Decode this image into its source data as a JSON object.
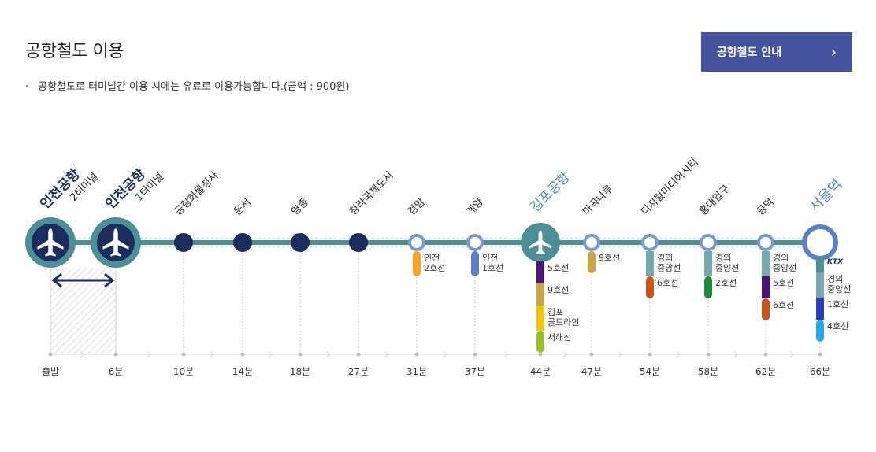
{
  "page": {
    "title": "공항철도 이용",
    "guide_button": "공항철도 안내",
    "notice": "공항철도로 터미널간 이용 시에는 유료로 이용가능합니다.(금액 : 900원)"
  },
  "colors": {
    "brand": "#44539b",
    "track": "#4d8f97",
    "airport_circle": "#4d8f97",
    "stop_dark": "#1b2d5c",
    "seoul_blue": "#5b80c5"
  },
  "stations": [
    {
      "name": "인천공항",
      "sub": "2터미널",
      "time": "출발",
      "kind": "airport"
    },
    {
      "name": "인천공항",
      "sub": "1터미널",
      "time": "6분",
      "kind": "airport"
    },
    {
      "name": "공항화물청사",
      "time": "10분",
      "kind": "stop"
    },
    {
      "name": "운서",
      "time": "14분",
      "kind": "stop"
    },
    {
      "name": "영종",
      "time": "18분",
      "kind": "stop"
    },
    {
      "name": "청라국제도시",
      "time": "27분",
      "kind": "stop"
    },
    {
      "name": "검암",
      "time": "31분",
      "kind": "transfer"
    },
    {
      "name": "계양",
      "time": "37분",
      "kind": "transfer"
    },
    {
      "name": "김포공항",
      "time": "44분",
      "kind": "airport-small"
    },
    {
      "name": "마곡나루",
      "time": "47분",
      "kind": "transfer"
    },
    {
      "name": "디지털미디어시티",
      "time": "54분",
      "kind": "transfer"
    },
    {
      "name": "홍대입구",
      "time": "58분",
      "kind": "transfer"
    },
    {
      "name": "공덕",
      "time": "62분",
      "kind": "transfer"
    },
    {
      "name": "서울역",
      "time": "66분",
      "kind": "terminal"
    }
  ],
  "transfers": [
    {
      "station": "검암",
      "lines": [
        {
          "label": "인천\n2호선",
          "color": "#f5a627"
        }
      ]
    },
    {
      "station": "계양",
      "lines": [
        {
          "label": "인천\n1호선",
          "color": "#5b80c5"
        }
      ]
    },
    {
      "station": "김포공항",
      "lines": [
        {
          "label": "5호선",
          "color": "#4b1478"
        },
        {
          "label": "9호선",
          "color": "#c9a646"
        },
        {
          "label": "김포\n골드라인",
          "color": "#f1c40f"
        },
        {
          "label": "서해선",
          "color": "#9cbf2c"
        }
      ]
    },
    {
      "station": "마곡나루",
      "lines": [
        {
          "label": "9호선",
          "color": "#c9a646"
        }
      ]
    },
    {
      "station": "디지털미디어시티",
      "lines": [
        {
          "label": "경의\n중앙선",
          "color": "#77a9ac"
        },
        {
          "label": "6호선",
          "color": "#c8561b"
        }
      ]
    },
    {
      "station": "홍대입구",
      "lines": [
        {
          "label": "경의\n중앙선",
          "color": "#77a9ac"
        },
        {
          "label": "2호선",
          "color": "#1f8a3a"
        }
      ]
    },
    {
      "station": "공덕",
      "lines": [
        {
          "label": "경의\n중앙선",
          "color": "#77a9ac"
        },
        {
          "label": "5호선",
          "color": "#4b1478"
        },
        {
          "label": "6호선",
          "color": "#c8561b"
        }
      ]
    },
    {
      "station": "서울역",
      "lines": [
        {
          "label": "KTX",
          "color": "#4d8f97"
        },
        {
          "label": "경의\n중앙선",
          "color": "#77a9ac"
        },
        {
          "label": "1호선",
          "color": "#2a3fb0"
        },
        {
          "label": "4호선",
          "color": "#27a9e1"
        }
      ]
    }
  ]
}
